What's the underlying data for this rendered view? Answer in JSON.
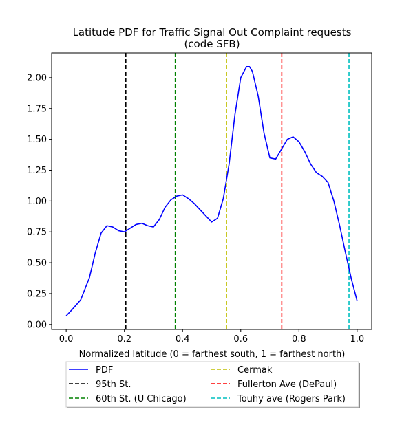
{
  "chart_data": {
    "type": "line",
    "title_line1": "Latitude PDF for Traffic Signal Out Complaint  requests",
    "title_line2": "(code SFB)",
    "xlabel": "Normalized latitude (0 = farthest south, 1 = farthest north)",
    "ylabel": "",
    "xlim": [
      -0.05,
      1.05
    ],
    "ylim": [
      -0.04,
      2.2
    ],
    "xticks": [
      {
        "value": 0.0,
        "label": "0.0"
      },
      {
        "value": 0.2,
        "label": "0.2"
      },
      {
        "value": 0.4,
        "label": "0.4"
      },
      {
        "value": 0.6,
        "label": "0.6"
      },
      {
        "value": 0.8,
        "label": "0.8"
      },
      {
        "value": 1.0,
        "label": "1.0"
      }
    ],
    "yticks": [
      {
        "value": 0.0,
        "label": "0.00"
      },
      {
        "value": 0.25,
        "label": "0.25"
      },
      {
        "value": 0.5,
        "label": "0.50"
      },
      {
        "value": 0.75,
        "label": "0.75"
      },
      {
        "value": 1.0,
        "label": "1.00"
      },
      {
        "value": 1.25,
        "label": "1.25"
      },
      {
        "value": 1.5,
        "label": "1.50"
      },
      {
        "value": 1.75,
        "label": "1.75"
      },
      {
        "value": 2.0,
        "label": "2.00"
      }
    ],
    "grid": false,
    "legend_position": "below",
    "series": [
      {
        "name": "PDF",
        "color": "#0000ff",
        "x": [
          0.0,
          0.02,
          0.05,
          0.08,
          0.1,
          0.12,
          0.14,
          0.16,
          0.18,
          0.2,
          0.22,
          0.24,
          0.26,
          0.28,
          0.3,
          0.32,
          0.34,
          0.36,
          0.38,
          0.4,
          0.42,
          0.44,
          0.46,
          0.48,
          0.5,
          0.52,
          0.54,
          0.56,
          0.58,
          0.6,
          0.62,
          0.63,
          0.64,
          0.66,
          0.68,
          0.7,
          0.72,
          0.74,
          0.76,
          0.78,
          0.8,
          0.82,
          0.84,
          0.86,
          0.88,
          0.9,
          0.92,
          0.94,
          0.96,
          0.98,
          1.0
        ],
        "y": [
          0.07,
          0.12,
          0.2,
          0.38,
          0.58,
          0.74,
          0.8,
          0.79,
          0.76,
          0.75,
          0.78,
          0.81,
          0.82,
          0.8,
          0.79,
          0.85,
          0.95,
          1.01,
          1.04,
          1.05,
          1.02,
          0.98,
          0.93,
          0.88,
          0.83,
          0.86,
          1.02,
          1.3,
          1.7,
          2.0,
          2.09,
          2.09,
          2.05,
          1.85,
          1.55,
          1.35,
          1.34,
          1.42,
          1.5,
          1.52,
          1.48,
          1.4,
          1.3,
          1.23,
          1.2,
          1.15,
          1.0,
          0.8,
          0.58,
          0.37,
          0.19
        ]
      }
    ],
    "vlines": [
      {
        "name": "95th St.",
        "x": 0.205,
        "color": "#000000"
      },
      {
        "name": "60th St. (U Chicago)",
        "x": 0.375,
        "color": "#008000"
      },
      {
        "name": "Cermak",
        "x": 0.551,
        "color": "#bfbf00"
      },
      {
        "name": "Fullerton Ave (DePaul)",
        "x": 0.741,
        "color": "#ff0000"
      },
      {
        "name": "Touhy ave (Rogers Park)",
        "x": 0.972,
        "color": "#00bfbf"
      }
    ],
    "legend_order": [
      "PDF",
      "95th St.",
      "60th St. (U Chicago)",
      "Cermak",
      "Fullerton Ave (DePaul)",
      "Touhy ave (Rogers Park)"
    ]
  }
}
